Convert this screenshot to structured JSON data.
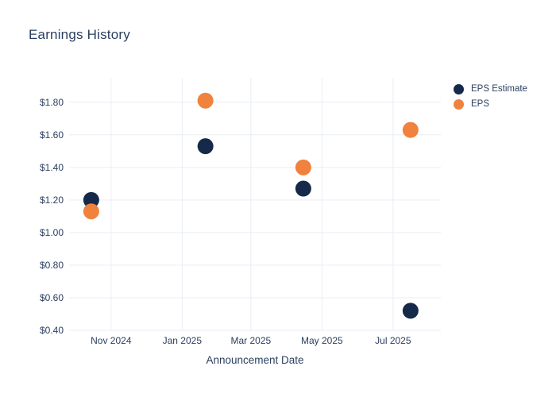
{
  "chart_data": {
    "type": "scatter",
    "title": "Earnings History",
    "xlabel": "Announcement Date",
    "ylabel": "",
    "grid": true,
    "legend_position": "right-top",
    "background_color": "#ffffff",
    "ylim": [
      0.4,
      1.95
    ],
    "y_tick_values": [
      0.4,
      0.6,
      0.8,
      1.0,
      1.2,
      1.4,
      1.6,
      1.8
    ],
    "y_tick_labels": [
      "$0.40",
      "$0.60",
      "$0.80",
      "$1.00",
      "$1.20",
      "$1.40",
      "$1.60",
      "$1.80"
    ],
    "x_domain": [
      "2024-09-26",
      "2025-08-11"
    ],
    "x_tick_dates": [
      "2024-11-01",
      "2025-01-01",
      "2025-03-01",
      "2025-05-01",
      "2025-07-01"
    ],
    "x_tick_labels": [
      "Nov 2024",
      "Jan 2025",
      "Mar 2025",
      "May 2025",
      "Jul 2025"
    ],
    "series": [
      {
        "name": "EPS Estimate",
        "color": "#152a4a",
        "marker_size": 20,
        "points": [
          {
            "x": "2024-10-15",
            "y": 1.2
          },
          {
            "x": "2025-01-21",
            "y": 1.53
          },
          {
            "x": "2025-04-15",
            "y": 1.27
          },
          {
            "x": "2025-07-16",
            "y": 0.52
          }
        ]
      },
      {
        "name": "EPS",
        "color": "#f0823d",
        "marker_size": 20,
        "points": [
          {
            "x": "2024-10-15",
            "y": 1.13
          },
          {
            "x": "2025-01-21",
            "y": 1.81
          },
          {
            "x": "2025-04-15",
            "y": 1.4
          },
          {
            "x": "2025-07-16",
            "y": 1.63
          }
        ]
      }
    ]
  }
}
